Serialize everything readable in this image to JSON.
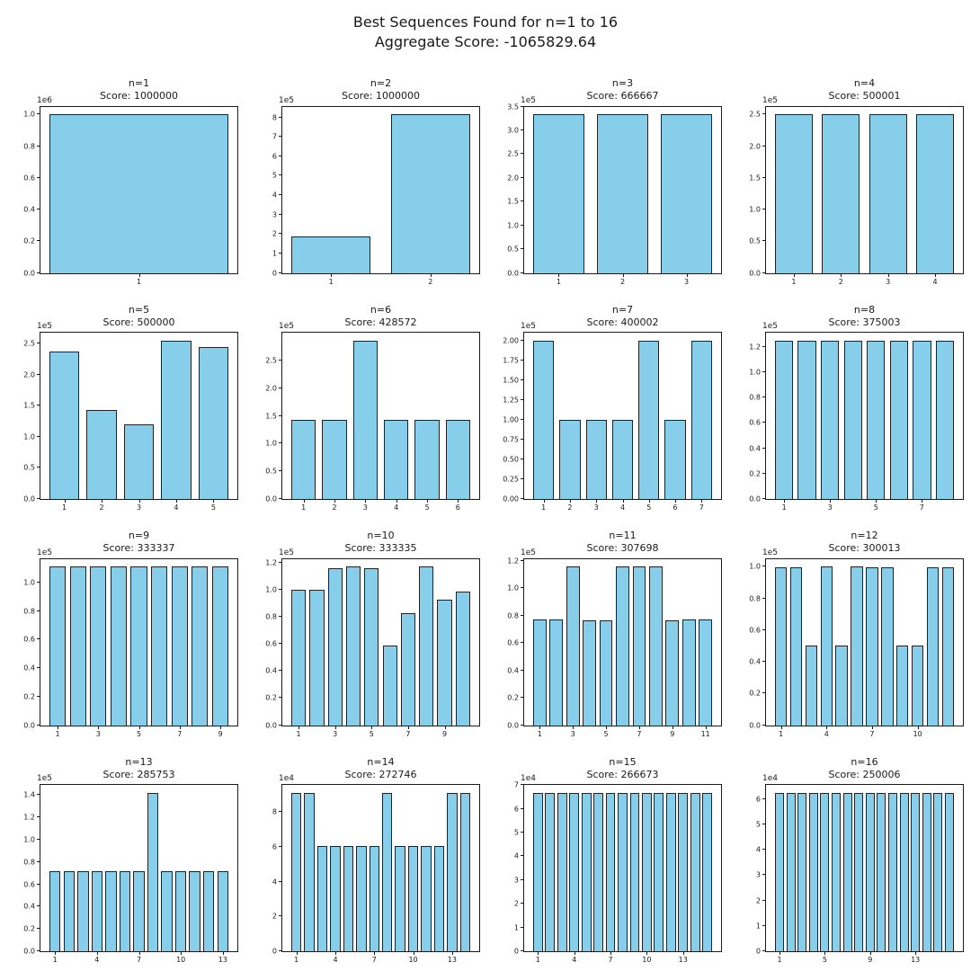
{
  "figure": {
    "suptitle_line1": "Best Sequences Found for n=1 to 16",
    "suptitle_line2": "Aggregate Score: -1065829.64",
    "bar_color": "#87CEEB",
    "bar_edge_color": "#222222",
    "grid": "off",
    "layout": "4x4 subplots"
  },
  "chart_data": [
    {
      "type": "bar",
      "title": "n=1",
      "subtitle": "Score: 1000000",
      "values": [
        1000000
      ],
      "offset_label": "1e6",
      "offset": 1000000,
      "ylim": [
        0,
        1050000
      ],
      "yticks": [
        "0.0",
        "0.2",
        "0.4",
        "0.6",
        "0.8",
        "1.0"
      ],
      "xticks": [
        1
      ]
    },
    {
      "type": "bar",
      "title": "n=2",
      "subtitle": "Score: 1000000",
      "values": [
        188000,
        815000
      ],
      "offset_label": "1e5",
      "offset": 100000,
      "ylim": [
        0,
        855750
      ],
      "yticks": [
        "0",
        "1",
        "2",
        "3",
        "4",
        "5",
        "6",
        "7",
        "8"
      ],
      "xticks": [
        1,
        2
      ]
    },
    {
      "type": "bar",
      "title": "n=3",
      "subtitle": "Score: 666667",
      "values": [
        333333,
        333333,
        333333
      ],
      "offset_label": "1e5",
      "offset": 100000,
      "ylim": [
        0,
        350000
      ],
      "yticks": [
        "0.0",
        "0.5",
        "1.0",
        "1.5",
        "2.0",
        "2.5",
        "3.0",
        "3.5"
      ],
      "xticks": [
        1,
        2,
        3
      ]
    },
    {
      "type": "bar",
      "title": "n=4",
      "subtitle": "Score: 500001",
      "values": [
        250000,
        250000,
        250000,
        250000
      ],
      "offset_label": "1e5",
      "offset": 100000,
      "ylim": [
        0,
        262500
      ],
      "yticks": [
        "0.0",
        "0.5",
        "1.0",
        "1.5",
        "2.0",
        "2.5"
      ],
      "xticks": [
        1,
        2,
        3,
        4
      ]
    },
    {
      "type": "bar",
      "title": "n=5",
      "subtitle": "Score: 500000",
      "values": [
        237000,
        143000,
        120000,
        255000,
        245000
      ],
      "offset_label": "1e5",
      "offset": 100000,
      "ylim": [
        0,
        267750
      ],
      "yticks": [
        "0.0",
        "0.5",
        "1.0",
        "1.5",
        "2.0",
        "2.5"
      ],
      "xticks": [
        1,
        2,
        3,
        4,
        5
      ]
    },
    {
      "type": "bar",
      "title": "n=6",
      "subtitle": "Score: 428572",
      "values": [
        142857,
        142857,
        285714,
        142857,
        142857,
        142857
      ],
      "offset_label": "1e5",
      "offset": 100000,
      "ylim": [
        0,
        300000
      ],
      "yticks": [
        "0.0",
        "0.5",
        "1.0",
        "1.5",
        "2.0",
        "2.5"
      ],
      "xticks": [
        1,
        2,
        3,
        4,
        5,
        6
      ]
    },
    {
      "type": "bar",
      "title": "n=7",
      "subtitle": "Score: 400002",
      "values": [
        200000,
        100000,
        100000,
        100000,
        200000,
        100000,
        200000
      ],
      "offset_label": "1e5",
      "offset": 100000,
      "ylim": [
        0,
        210000
      ],
      "yticks": [
        "0.00",
        "0.25",
        "0.50",
        "0.75",
        "1.00",
        "1.25",
        "1.50",
        "1.75",
        "2.00"
      ],
      "xticks": [
        1,
        2,
        3,
        4,
        5,
        6,
        7
      ]
    },
    {
      "type": "bar",
      "title": "n=8",
      "subtitle": "Score: 375003",
      "values": [
        125000,
        125000,
        125000,
        125000,
        125000,
        125000,
        125000,
        125000
      ],
      "offset_label": "1e5",
      "offset": 100000,
      "ylim": [
        0,
        131250
      ],
      "yticks": [
        "0.0",
        "0.2",
        "0.4",
        "0.6",
        "0.8",
        "1.0",
        "1.2"
      ],
      "xticks": [
        1,
        3,
        5,
        7
      ]
    },
    {
      "type": "bar",
      "title": "n=9",
      "subtitle": "Score: 333337",
      "values": [
        111111,
        111111,
        111111,
        111111,
        111111,
        111111,
        111111,
        111111,
        111111
      ],
      "offset_label": "1e5",
      "offset": 100000,
      "ylim": [
        0,
        116667
      ],
      "yticks": [
        "0.0",
        "0.2",
        "0.4",
        "0.6",
        "0.8",
        "1.0"
      ],
      "xticks": [
        1,
        3,
        5,
        7,
        9
      ]
    },
    {
      "type": "bar",
      "title": "n=10",
      "subtitle": "Score: 333335",
      "values": [
        100000,
        100000,
        116000,
        117000,
        116000,
        59000,
        83000,
        117000,
        93000,
        99000
      ],
      "offset_label": "1e5",
      "offset": 100000,
      "ylim": [
        0,
        122850
      ],
      "yticks": [
        "0.0",
        "0.2",
        "0.4",
        "0.6",
        "0.8",
        "1.0",
        "1.2"
      ],
      "xticks": [
        1,
        3,
        5,
        7,
        9
      ]
    },
    {
      "type": "bar",
      "title": "n=11",
      "subtitle": "Score: 307698",
      "values": [
        77000,
        77000,
        115500,
        76500,
        76500,
        115500,
        115500,
        115500,
        76500,
        77000,
        77000
      ],
      "offset_label": "1e5",
      "offset": 100000,
      "ylim": [
        0,
        121275
      ],
      "yticks": [
        "0.0",
        "0.2",
        "0.4",
        "0.6",
        "0.8",
        "1.0",
        "1.2"
      ],
      "xticks": [
        1,
        3,
        5,
        7,
        9,
        11
      ]
    },
    {
      "type": "bar",
      "title": "n=12",
      "subtitle": "Score: 300013",
      "values": [
        99500,
        99500,
        50000,
        100000,
        50000,
        100000,
        99500,
        99500,
        50000,
        50000,
        99500,
        99500
      ],
      "offset_label": "1e5",
      "offset": 100000,
      "ylim": [
        0,
        105000
      ],
      "yticks": [
        "0.0",
        "0.2",
        "0.4",
        "0.6",
        "0.8",
        "1.0"
      ],
      "xticks": [
        1,
        4,
        7,
        10
      ]
    },
    {
      "type": "bar",
      "title": "n=13",
      "subtitle": "Score: 285753",
      "values": [
        71500,
        71500,
        71500,
        71500,
        71500,
        71500,
        71500,
        142000,
        71500,
        71500,
        71500,
        71500,
        71500
      ],
      "offset_label": "1e5",
      "offset": 100000,
      "ylim": [
        0,
        149100
      ],
      "yticks": [
        "0.0",
        "0.2",
        "0.4",
        "0.6",
        "0.8",
        "1.0",
        "1.2",
        "1.4"
      ],
      "xticks": [
        1,
        4,
        7,
        10,
        13
      ]
    },
    {
      "type": "bar",
      "title": "n=14",
      "subtitle": "Score: 272746",
      "values": [
        91000,
        91000,
        60600,
        60600,
        60600,
        60600,
        60600,
        91000,
        60600,
        60600,
        60600,
        60600,
        91000,
        91000
      ],
      "offset_label": "1e4",
      "offset": 10000,
      "ylim": [
        0,
        95550
      ],
      "yticks": [
        "0",
        "2",
        "4",
        "6",
        "8"
      ],
      "xticks": [
        1,
        4,
        7,
        10,
        13
      ]
    },
    {
      "type": "bar",
      "title": "n=15",
      "subtitle": "Score: 266673",
      "values": [
        66670,
        66670,
        66670,
        66670,
        66670,
        66670,
        66670,
        66670,
        66670,
        66670,
        66670,
        66670,
        66670,
        66670,
        66670
      ],
      "offset_label": "1e4",
      "offset": 10000,
      "ylim": [
        0,
        70003
      ],
      "yticks": [
        "0",
        "1",
        "2",
        "3",
        "4",
        "5",
        "6",
        "7"
      ],
      "xticks": [
        1,
        4,
        7,
        10,
        13
      ]
    },
    {
      "type": "bar",
      "title": "n=16",
      "subtitle": "Score: 250006",
      "values": [
        62500,
        62500,
        62500,
        62500,
        62500,
        62500,
        62500,
        62500,
        62500,
        62500,
        62500,
        62500,
        62500,
        62500,
        62500,
        62500
      ],
      "offset_label": "1e4",
      "offset": 10000,
      "ylim": [
        0,
        65625
      ],
      "yticks": [
        "0",
        "1",
        "2",
        "3",
        "4",
        "5",
        "6"
      ],
      "xticks": [
        1,
        5,
        9,
        13
      ]
    }
  ]
}
